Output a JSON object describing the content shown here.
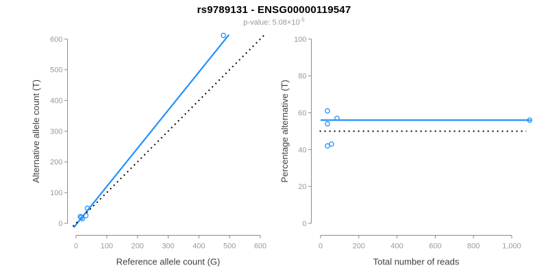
{
  "header": {
    "title": "rs9789131 - ENSG00000119547",
    "pvalue_prefix": "p-value: 5.08×10",
    "pvalue_exponent": "-5"
  },
  "colors": {
    "accent_blue": "#1E90FF",
    "line_black": "#000000",
    "axis_line": "#8a8a8a",
    "tick_label": "#999999",
    "axis_title": "#404040",
    "title_color": "#000000",
    "subtitle_color": "#999999",
    "background": "#ffffff"
  },
  "chart_data": [
    {
      "type": "scatter",
      "title": "",
      "xlabel": "Reference allele count (G)",
      "ylabel": "Alternative allele count (T)",
      "xlim": [
        0,
        600
      ],
      "ylim": [
        0,
        600
      ],
      "grid": false,
      "legend": null,
      "xticks": [
        0,
        100,
        200,
        300,
        400,
        500,
        600
      ],
      "xtick_labels": [
        "0",
        "100",
        "200",
        "300",
        "400",
        "500",
        "600"
      ],
      "yticks": [
        0,
        100,
        200,
        300,
        400,
        500,
        600
      ],
      "ytick_labels": [
        "0",
        "100",
        "200",
        "300",
        "400",
        "500",
        "600"
      ],
      "points": [
        [
          14,
          22
        ],
        [
          37,
          49
        ],
        [
          17,
          19
        ],
        [
          21,
          15
        ],
        [
          32,
          25
        ],
        [
          480,
          612
        ]
      ],
      "lines": [
        {
          "name": "fit-line",
          "x1": -7,
          "y1": -13,
          "x2": 498,
          "y2": 614,
          "style": "solid",
          "color": "accent_blue"
        },
        {
          "name": "identity-line",
          "x1": -10,
          "y1": -10,
          "x2": 615,
          "y2": 615,
          "style": "dotted",
          "color": "line_black"
        }
      ]
    },
    {
      "type": "scatter",
      "title": "",
      "xlabel": "Total number of reads",
      "ylabel": "Percentage alternative (T)",
      "xlim": [
        0,
        1000
      ],
      "ylim": [
        0,
        100
      ],
      "grid": false,
      "legend": null,
      "xticks": [
        0,
        200,
        400,
        600,
        800,
        1000
      ],
      "xtick_labels": [
        "0",
        "200",
        "400",
        "600",
        "800",
        "1,000"
      ],
      "yticks": [
        0,
        20,
        40,
        60,
        80,
        100
      ],
      "ytick_labels": [
        "0",
        "20",
        "40",
        "60",
        "80",
        "100"
      ],
      "points": [
        [
          36,
          61
        ],
        [
          86,
          57
        ],
        [
          36,
          54
        ],
        [
          36,
          42
        ],
        [
          57,
          43
        ],
        [
          1094,
          56
        ]
      ],
      "lines": [
        {
          "name": "fit-line",
          "x1": 0,
          "y1": 56,
          "x2": 1101,
          "y2": 56,
          "style": "solid",
          "color": "accent_blue"
        },
        {
          "name": "reference-line",
          "x1": -5,
          "y1": 50,
          "x2": 1076,
          "y2": 50,
          "style": "dotted",
          "color": "line_black"
        }
      ]
    }
  ]
}
